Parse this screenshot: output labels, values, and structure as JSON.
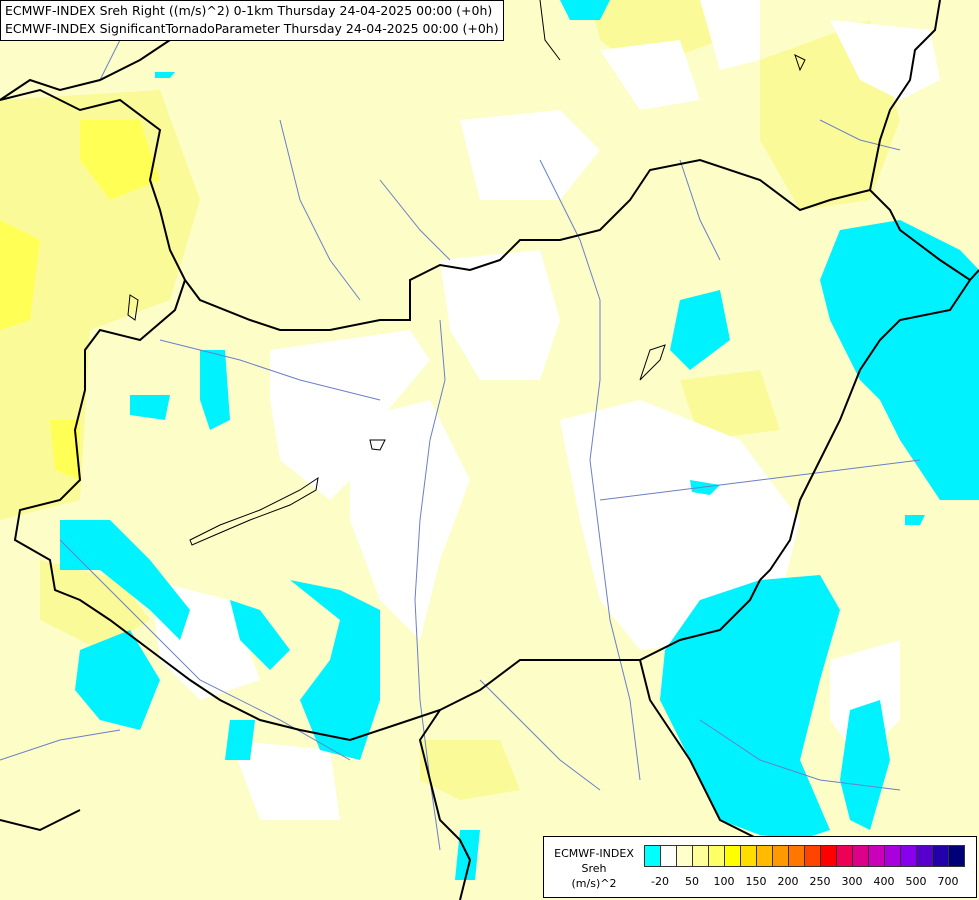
{
  "header": {
    "line1": "ECMWF-INDEX Sreh Right ((m/s)^2) 0-1km Thursday 24-04-2025 00:00 (+0h)",
    "line2": "ECMWF-INDEX SignificantTornadoParameter Thursday 24-04-2025 00:00 (+0h)"
  },
  "legend": {
    "title_line1": "ECMWF-INDEX",
    "title_line2": "Sreh",
    "title_line3": "(m/s)^2",
    "colors": [
      "#00ffff",
      "#ffffff",
      "#ffffcc",
      "#ffff99",
      "#ffff66",
      "#ffff00",
      "#ffdd00",
      "#ffbb00",
      "#ff9900",
      "#ff7700",
      "#ff4400",
      "#ff0000",
      "#ee0055",
      "#dd0088",
      "#cc00bb",
      "#aa00dd",
      "#8800ee",
      "#5500cc",
      "#2200aa",
      "#000077"
    ],
    "tick_labels": [
      "-20",
      "50",
      "100",
      "150",
      "200",
      "250",
      "300",
      "400",
      "500",
      "700"
    ]
  },
  "map": {
    "colors": {
      "low": "#fdfdc8",
      "mid": "#fafa99",
      "high": "#ffff4d",
      "white": "#ffffff",
      "cyan": "#00f2ff",
      "border": "#000000",
      "river": "#6a7fc9"
    }
  }
}
